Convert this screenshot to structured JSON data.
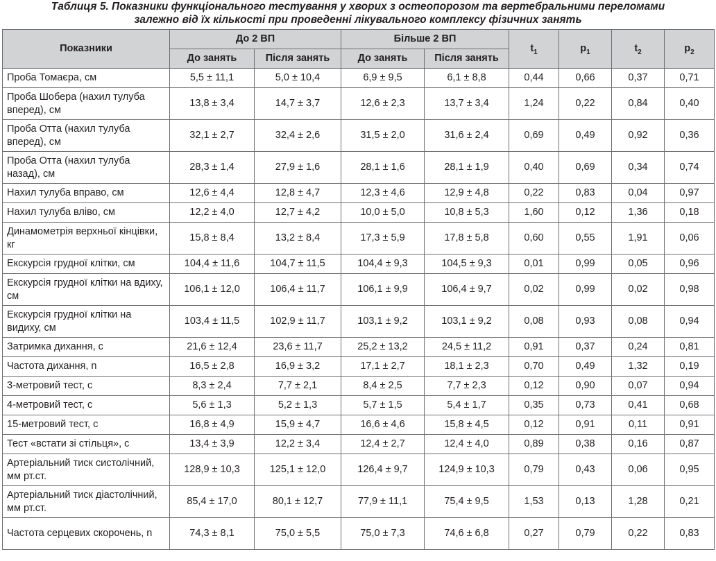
{
  "caption": {
    "line1": "Таблиця 5. Показники функціонального тестування у хворих з остеопорозом та вертебральними переломами",
    "line2": "залежно від їх кількості при проведенні лікувального комплексу фізичних занять"
  },
  "header": {
    "indicators": "Показники",
    "group1": "До 2 ВП",
    "group2": "Більше 2 ВП",
    "before": "До занять",
    "after": "Після занять",
    "t1": {
      "base": "t",
      "sub": "1"
    },
    "p1": {
      "base": "p",
      "sub": "1"
    },
    "t2": {
      "base": "t",
      "sub": "2"
    },
    "p2": {
      "base": "p",
      "sub": "2"
    }
  },
  "rows": [
    {
      "name": "Проба Томаєра, см",
      "a": "5,5 ± 11,1",
      "b": "5,0 ± 10,4",
      "c": "6,9 ± 9,5",
      "d": "6,1 ± 8,8",
      "t1": "0,44",
      "p1": "0,66",
      "t2": "0,37",
      "p2": "0,71"
    },
    {
      "name": "Проба Шобера (нахил тулуба вперед), см",
      "a": "13,8 ± 3,4",
      "b": "14,7 ± 3,7",
      "c": "12,6 ± 2,3",
      "d": "13,7 ± 3,4",
      "t1": "1,24",
      "p1": "0,22",
      "t2": "0,84",
      "p2": "0,40"
    },
    {
      "name": "Проба Отта (нахил тулуба вперед), см",
      "a": "32,1 ± 2,7",
      "b": "32,4 ± 2,6",
      "c": "31,5 ± 2,0",
      "d": "31,6 ± 2,4",
      "t1": "0,69",
      "p1": "0,49",
      "t2": "0,92",
      "p2": "0,36"
    },
    {
      "name": "Проба Отта (нахил тулуба назад), см",
      "a": "28,3 ± 1,4",
      "b": "27,9 ± 1,6",
      "c": "28,1 ± 1,6",
      "d": "28,1 ± 1,9",
      "t1": "0,40",
      "p1": "0,69",
      "t2": "0,34",
      "p2": "0,74"
    },
    {
      "name": "Нахил тулуба вправо, см",
      "a": "12,6 ± 4,4",
      "b": "12,8 ± 4,7",
      "c": "12,3 ± 4,6",
      "d": "12,9 ± 4,8",
      "t1": "0,22",
      "p1": "0,83",
      "t2": "0,04",
      "p2": "0,97"
    },
    {
      "name": "Нахил тулуба вліво, см",
      "a": "12,2 ± 4,0",
      "b": "12,7 ± 4,2",
      "c": "10,0 ± 5,0",
      "d": "10,8 ± 5,3",
      "t1": "1,60",
      "p1": "0,12",
      "t2": "1,36",
      "p2": "0,18"
    },
    {
      "name": "Динамометрія верхньої кінцівки, кг",
      "a": "15,8 ± 8,4",
      "b": "13,2 ± 8,4",
      "c": "17,3 ± 5,9",
      "d": "17,8 ± 5,8",
      "t1": "0,60",
      "p1": "0,55",
      "t2": "1,91",
      "p2": "0,06"
    },
    {
      "name": "Екскурсія грудної клітки, см",
      "a": "104,4 ± 11,6",
      "b": "104,7 ± 11,5",
      "c": "104,4 ± 9,3",
      "d": "104,5 ± 9,3",
      "t1": "0,01",
      "p1": "0,99",
      "t2": "0,05",
      "p2": "0,96"
    },
    {
      "name": "Екскурсія грудної клітки на вдиху, см",
      "a": "106,1 ± 12,0",
      "b": "106,4 ± 11,7",
      "c": "106,1 ± 9,9",
      "d": "106,4 ± 9,7",
      "t1": "0,02",
      "p1": "0,99",
      "t2": "0,02",
      "p2": "0,98"
    },
    {
      "name": "Екскурсія грудної клітки на видиху, см",
      "a": "103,4 ± 11,5",
      "b": "102,9 ± 11,7",
      "c": "103,1 ± 9,2",
      "d": "103,1 ± 9,2",
      "t1": "0,08",
      "p1": "0,93",
      "t2": "0,08",
      "p2": "0,94"
    },
    {
      "name": "Затримка дихання, с",
      "a": "21,6 ± 12,4",
      "b": "23,6 ± 11,7",
      "c": "25,2 ± 13,2",
      "d": "24,5 ± 11,2",
      "t1": "0,91",
      "p1": "0,37",
      "t2": "0,24",
      "p2": "0,81"
    },
    {
      "name": "Частота дихання, n",
      "a": "16,5 ± 2,8",
      "b": "16,9 ± 3,2",
      "c": "17,1 ± 2,7",
      "d": "18,1 ± 2,3",
      "t1": "0,70",
      "p1": "0,49",
      "t2": "1,32",
      "p2": "0,19"
    },
    {
      "name": "3-метровий тест, с",
      "a": "8,3 ± 2,4",
      "b": "7,7 ± 2,1",
      "c": "8,4 ± 2,5",
      "d": "7,7 ± 2,3",
      "t1": "0,12",
      "p1": "0,90",
      "t2": "0,07",
      "p2": "0,94"
    },
    {
      "name": "4-метровий тест, с",
      "a": "5,6 ± 1,3",
      "b": "5,2 ± 1,3",
      "c": "5,7 ± 1,5",
      "d": "5,4 ± 1,7",
      "t1": "0,35",
      "p1": "0,73",
      "t2": "0,41",
      "p2": "0,68"
    },
    {
      "name": "15-метровий тест, с",
      "a": "16,8 ± 4,9",
      "b": "15,9 ± 4,7",
      "c": "16,6 ± 4,6",
      "d": "15,8 ± 4,5",
      "t1": "0,12",
      "p1": "0,91",
      "t2": "0,11",
      "p2": "0,91"
    },
    {
      "name": "Тест «встати зі стільця», с",
      "a": "13,4 ± 3,9",
      "b": "12,2 ± 3,4",
      "c": "12,4 ± 2,7",
      "d": "12,4 ± 4,0",
      "t1": "0,89",
      "p1": "0,38",
      "t2": "0,16",
      "p2": "0,87"
    },
    {
      "name": "Артеріальний тиск систолічний, мм рт.ст.",
      "a": "128,9 ± 10,3",
      "b": "125,1 ± 12,0",
      "c": "126,4 ± 9,7",
      "d": "124,9 ± 10,3",
      "t1": "0,79",
      "p1": "0,43",
      "t2": "0,06",
      "p2": "0,95"
    },
    {
      "name": "Артеріальний тиск діастолічний, мм рт.ст.",
      "a": "85,4 ± 17,0",
      "b": "80,1 ± 12,7",
      "c": "77,9 ± 11,1",
      "d": "75,4 ± 9,5",
      "t1": "1,53",
      "p1": "0,13",
      "t2": "1,28",
      "p2": "0,21"
    },
    {
      "name": "Частота серцевих скорочень, n",
      "a": "74,3 ± 8,1",
      "b": "75,0 ± 5,5",
      "c": "75,0 ± 7,3",
      "d": "74,6 ± 6,8",
      "t1": "0,27",
      "p1": "0,79",
      "t2": "0,22",
      "p2": "0,83"
    }
  ]
}
